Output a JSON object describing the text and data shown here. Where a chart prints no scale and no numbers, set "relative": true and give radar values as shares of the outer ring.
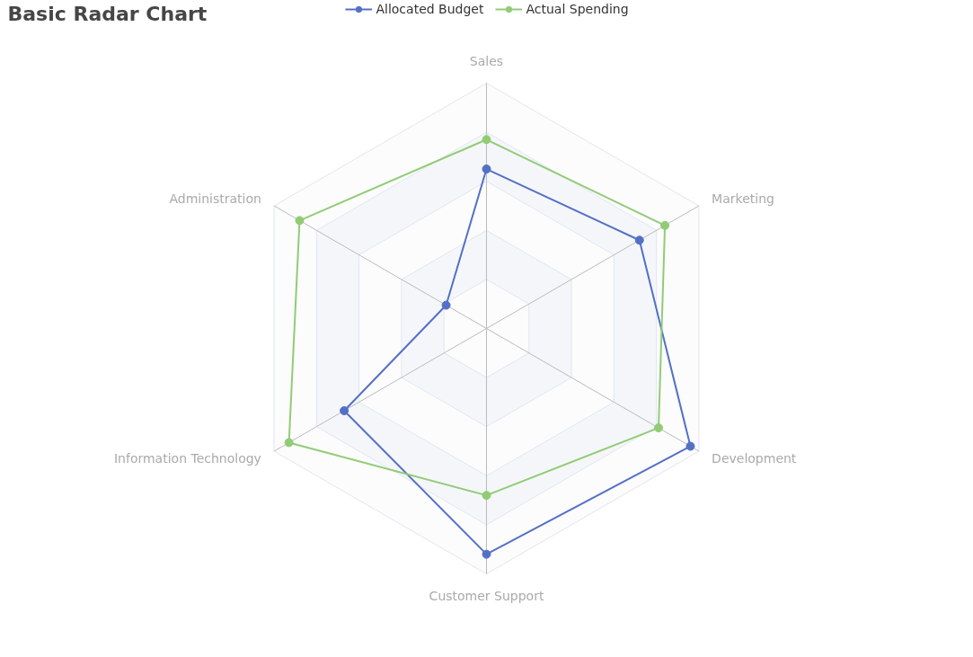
{
  "chart_data": {
    "type": "radar",
    "title": "Basic Radar Chart",
    "relative": true,
    "grid": true,
    "legend": "top",
    "marker": "circle",
    "line_style": "solid",
    "categories": [
      "Sales",
      "Marketing",
      "Development",
      "Customer Support",
      "Information Technology",
      "Administration"
    ],
    "series": [
      {
        "name": "Allocated Budget",
        "color": "#5470c6",
        "values": [
          0.65,
          0.72,
          0.96,
          0.92,
          0.67,
          0.19
        ]
      },
      {
        "name": "Actual Spending",
        "color": "#91cc75",
        "values": [
          0.77,
          0.84,
          0.81,
          0.68,
          0.93,
          0.88
        ]
      }
    ]
  }
}
